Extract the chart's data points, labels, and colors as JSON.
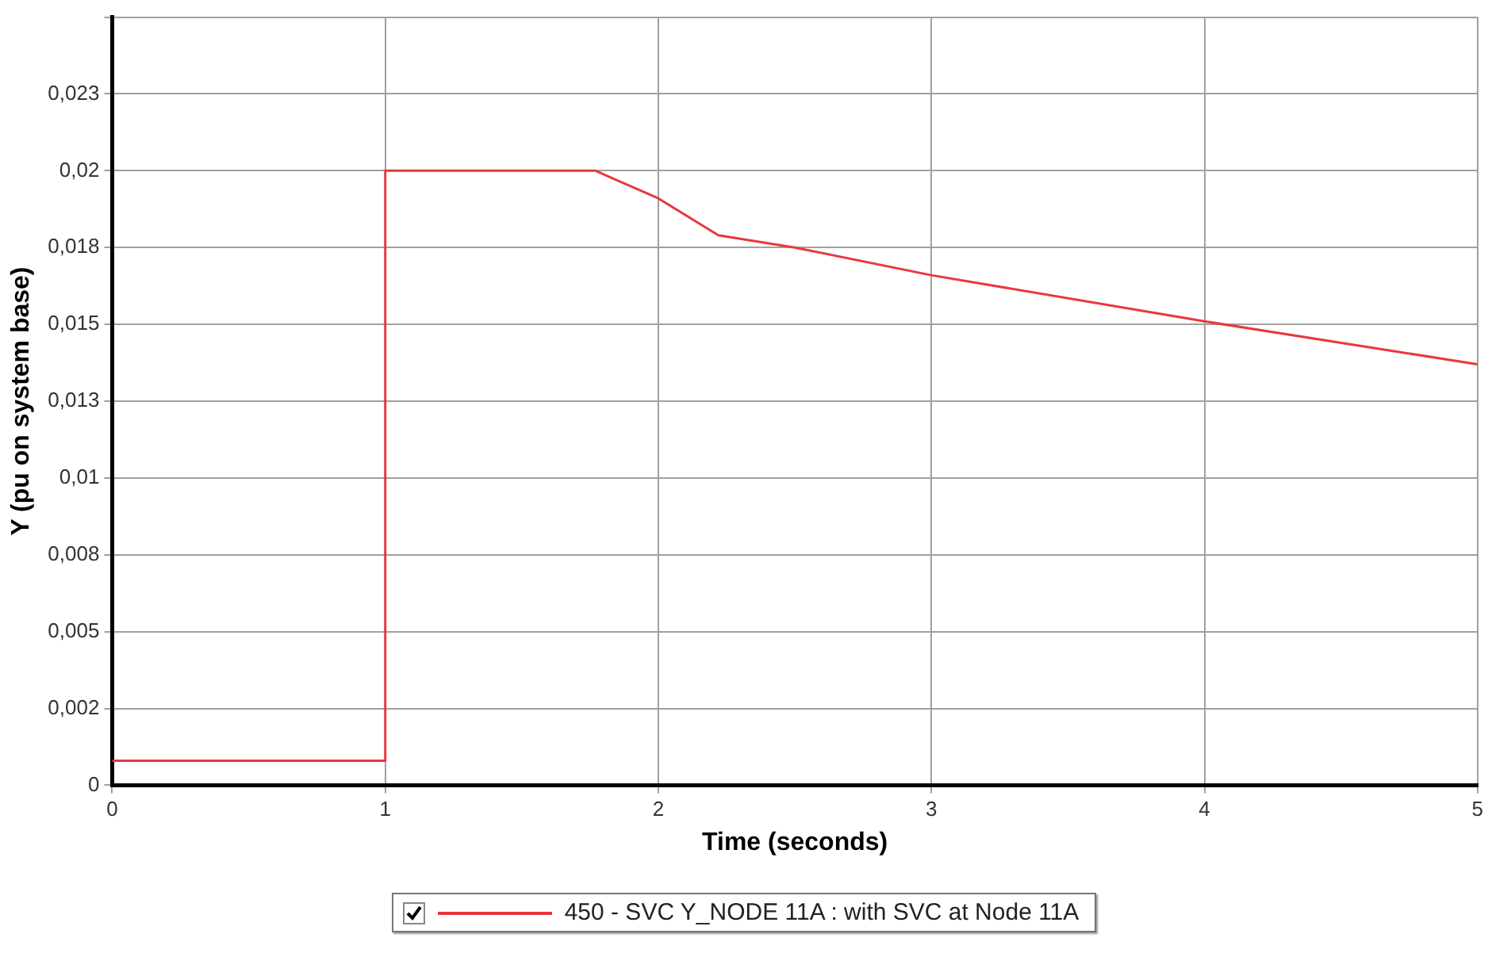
{
  "chart_data": {
    "type": "line",
    "xlabel": "Time (seconds)",
    "ylabel": "Y (pu on system base)",
    "x": [
      0,
      1,
      1,
      1.77,
      2,
      2.22,
      2.5,
      3,
      4,
      5
    ],
    "series": [
      {
        "name": "450 - SVC Y_NODE 11A : with SVC at Node 11A",
        "color": "#e8383d",
        "values": [
          0.0008,
          0.0008,
          0.02,
          0.02,
          0.0191,
          0.0179,
          0.0175,
          0.0166,
          0.0151,
          0.0137
        ]
      }
    ],
    "xlim": [
      0,
      5
    ],
    "xticks": [
      0,
      1,
      2,
      3,
      4,
      5
    ],
    "ylim": [
      0,
      0.025
    ],
    "yticks": [
      0,
      {
        "value": 0.0025,
        "label": "0,002"
      },
      {
        "value": 0.005,
        "label": "0,005"
      },
      {
        "value": 0.0075,
        "label": "0,008"
      },
      {
        "value": 0.01,
        "label": "0,01"
      },
      {
        "value": 0.0125,
        "label": "0,013"
      },
      {
        "value": 0.015,
        "label": "0,015"
      },
      {
        "value": 0.0175,
        "label": "0,018"
      },
      {
        "value": 0.02,
        "label": "0,02"
      },
      {
        "value": 0.0225,
        "label": "0,023"
      },
      {
        "value": 0.025,
        "label": null
      }
    ],
    "grid": true,
    "legend": "bottom",
    "marker": "none",
    "line_style": "solid"
  }
}
